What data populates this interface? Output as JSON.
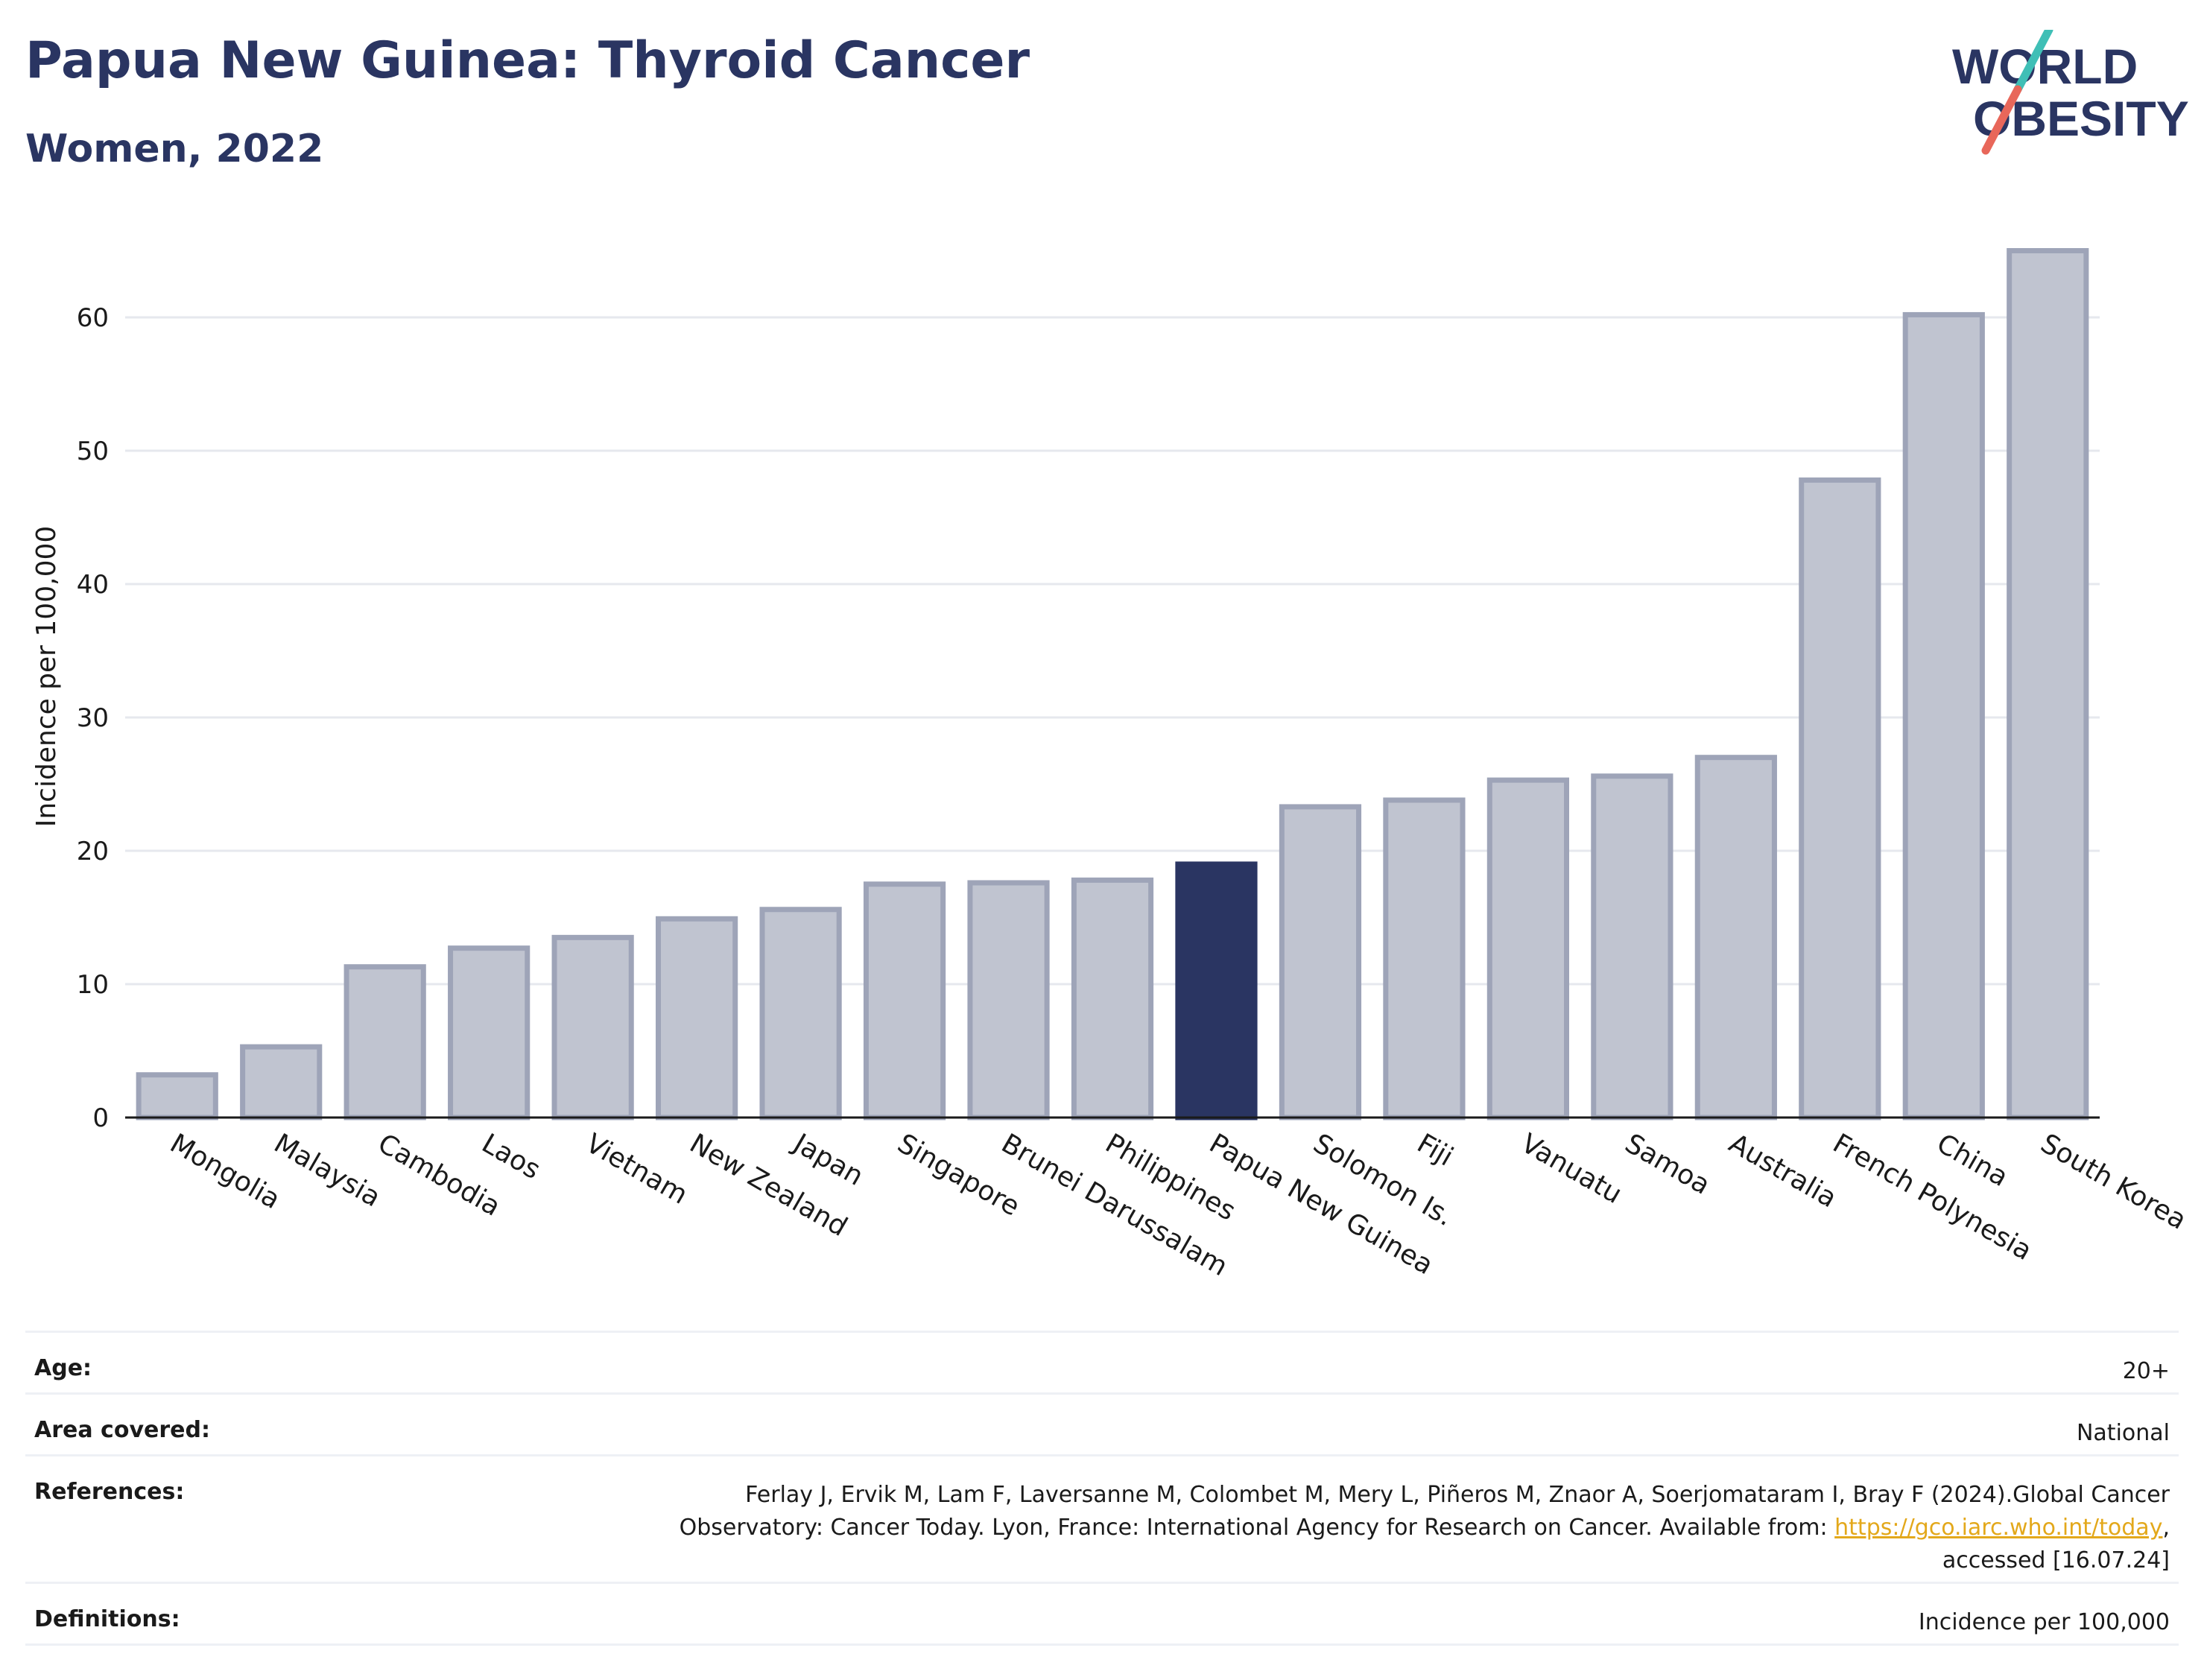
{
  "header": {
    "title": "Papua New Guinea: Thyroid Cancer",
    "subtitle": "Women, 2022"
  },
  "logo": {
    "text_line1": "WORLD",
    "text_line2": "OBESITY",
    "colors": {
      "text": "#2a3562",
      "slash_top": "#3fbfb6",
      "slash_bottom": "#e8675a"
    }
  },
  "chart_data": {
    "type": "bar",
    "title": "Papua New Guinea: Thyroid Cancer",
    "subtitle": "Women, 2022",
    "xlabel": "",
    "ylabel": "Incidence per 100,000",
    "ylim": [
      0,
      67
    ],
    "yticks": [
      0,
      10,
      20,
      30,
      40,
      50,
      60
    ],
    "grid": true,
    "highlight": "Papua New Guinea",
    "colors": {
      "bar": "#c0c4d0",
      "bar_edge": "#9ea4b8",
      "highlight": "#2a3562",
      "grid": "#e6e8ee"
    },
    "categories": [
      "Mongolia",
      "Malaysia",
      "Cambodia",
      "Laos",
      "Vietnam",
      "New Zealand",
      "Japan",
      "Singapore",
      "Brunei Darussalam",
      "Philippines",
      "Papua New Guinea",
      "Solomon Is.",
      "Fiji",
      "Vanuatu",
      "Samoa",
      "Australia",
      "French Polynesia",
      "China",
      "South Korea"
    ],
    "values": [
      3.2,
      5.3,
      11.3,
      12.7,
      13.5,
      14.9,
      15.6,
      17.5,
      17.6,
      17.8,
      19.0,
      23.3,
      23.8,
      25.3,
      25.6,
      27.0,
      47.8,
      60.2,
      65.0
    ]
  },
  "info": {
    "age_label": "Age:",
    "age_value": "20+",
    "area_label": "Area covered:",
    "area_value": "National",
    "references_label": "References:",
    "references_line1": "Ferlay J, Ervik M, Lam F, Laversanne M, Colombet M, Mery L, Piñeros M, Znaor A, Soerjomataram I, Bray F (2024).Global Cancer",
    "references_line2_pre": "Observatory: Cancer Today. Lyon, France: International Agency for Research on Cancer. Available from: ",
    "references_link": "https://gco.iarc.who.int/today",
    "references_line2_post": ",",
    "references_line3": "accessed [16.07.24]",
    "definitions_label": "Definitions:",
    "definitions_value": "Incidence per 100,000"
  }
}
